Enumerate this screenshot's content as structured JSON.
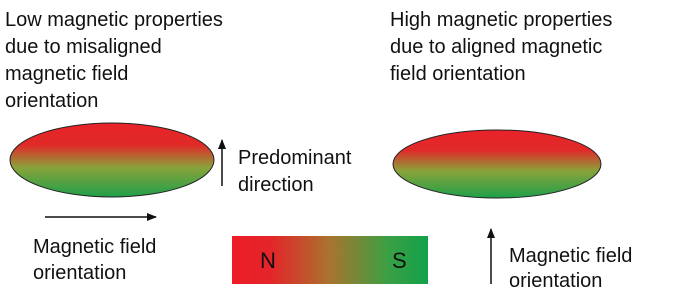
{
  "left_panel": {
    "caption": [
      "Low magnetic properties",
      "due to misaligned",
      "magnetic field",
      "orientation"
    ],
    "arrow_label": [
      "Magnetic field",
      "orientation"
    ]
  },
  "middle": {
    "arrow_label": [
      "Predominant",
      "direction"
    ]
  },
  "right_panel": {
    "caption": [
      "High magnetic properties",
      "due to aligned magnetic",
      "field orientation"
    ],
    "arrow_label": [
      "Magnetic field",
      "orientation"
    ]
  },
  "magnet": {
    "north": "N",
    "south": "S"
  }
}
